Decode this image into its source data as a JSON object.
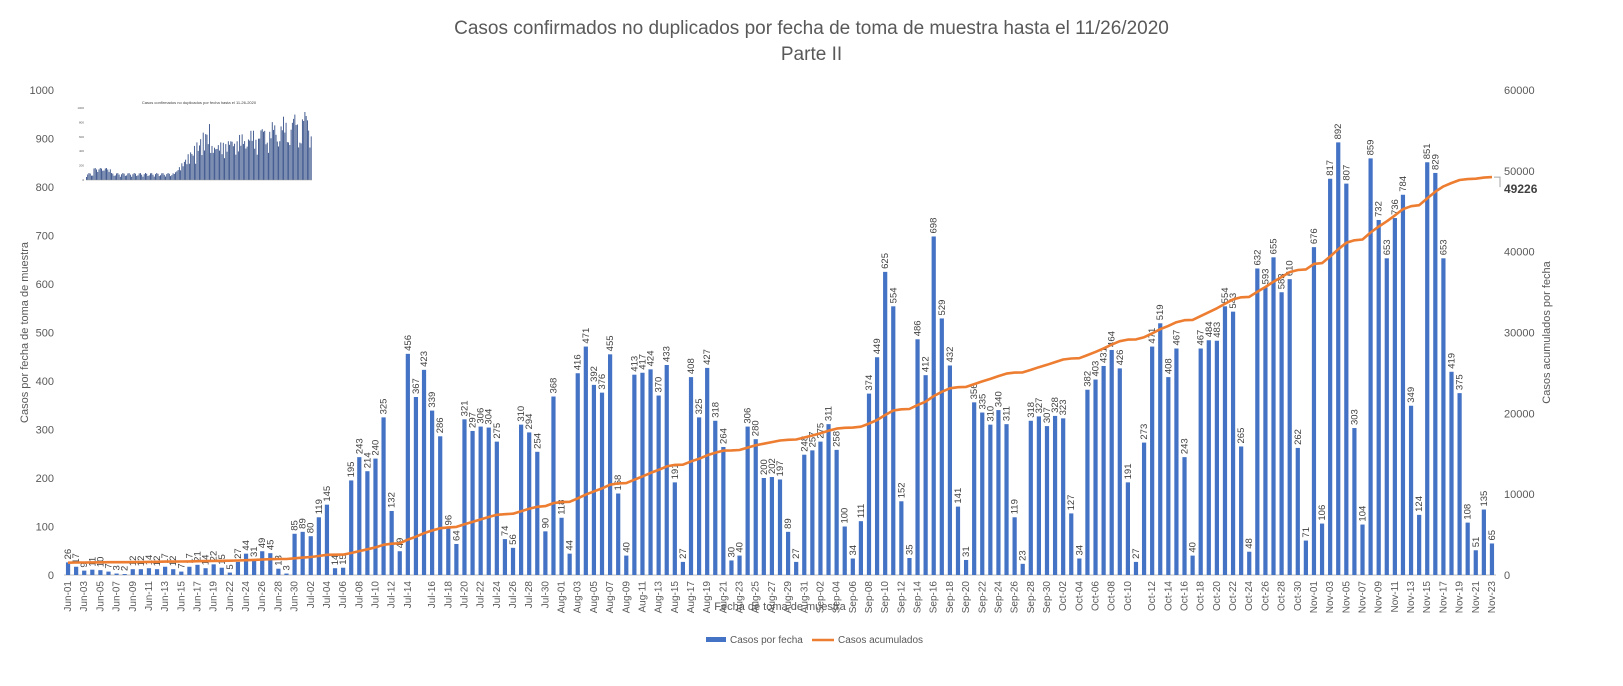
{
  "chart_data": {
    "type": "bar+line",
    "title": "Casos confirmados no duplicados por fecha de toma de muestra hasta el 11/26/2020",
    "subtitle": "Parte II",
    "xlabel": "Fecha de toma de muestra",
    "ylabel_left": "Casos por fecha de toma de muestra",
    "ylabel_right": "Casos acumulados por fecha",
    "ylim_left": [
      0,
      1000
    ],
    "ylim_right": [
      0,
      60000
    ],
    "yticks_left": [
      "0",
      "100",
      "200",
      "300",
      "400",
      "500",
      "600",
      "700",
      "800",
      "900",
      "1000"
    ],
    "yticks_right": [
      "0",
      "10000",
      "20000",
      "30000",
      "40000",
      "50000",
      "60000"
    ],
    "legend_position": "bottom",
    "start_date": "2020-06-01",
    "end_date": "2020-11-24",
    "x_tick_labels": [
      "Jun-01",
      "Jun-03",
      "Jun-05",
      "Jun-07",
      "Jun-09",
      "Jun-11",
      "Jun-13",
      "Jun-15",
      "Jun-17",
      "Jun-19",
      "Jun-22",
      "Jun-24",
      "Jun-26",
      "Jun-28",
      "Jun-30",
      "Jul-02",
      "Jul-04",
      "Jul-06",
      "Jul-08",
      "Jul-10",
      "Jul-12",
      "Jul-14",
      "Jul-16",
      "Jul-18",
      "Jul-20",
      "Jul-22",
      "Jul-24",
      "Jul-26",
      "Jul-28",
      "Jul-30",
      "Aug-01",
      "Aug-03",
      "Aug-05",
      "Aug-07",
      "Aug-09",
      "Aug-11",
      "Aug-13",
      "Aug-15",
      "Aug-17",
      "Aug-19",
      "Aug-21",
      "Aug-23",
      "Aug-25",
      "Aug-27",
      "Aug-29",
      "Aug-31",
      "Sep-02",
      "Sep-04",
      "Sep-06",
      "Sep-08",
      "Sep-10",
      "Sep-12",
      "Sep-14",
      "Sep-16",
      "Sep-18",
      "Sep-20",
      "Sep-22",
      "Sep-24",
      "Sep-26",
      "Sep-28",
      "Sep-30",
      "Oct-02",
      "Oct-04",
      "Oct-06",
      "Oct-08",
      "Oct-10",
      "Oct-12",
      "Oct-14",
      "Oct-16",
      "Oct-18",
      "Oct-20",
      "Oct-22",
      "Oct-24",
      "Oct-26",
      "Oct-28",
      "Oct-30",
      "Nov-01",
      "Nov-03",
      "Nov-05",
      "Nov-07",
      "Nov-09",
      "Nov-11",
      "Nov-13",
      "Nov-15",
      "Nov-17",
      "Nov-19",
      "Nov-21",
      "Nov-23"
    ],
    "series": [
      {
        "name": "Casos por fecha",
        "color": "#4472C4",
        "axis": "left",
        "type": "bar",
        "values": [
          26,
          17,
          9,
          11,
          10,
          7,
          3,
          2,
          12,
          12,
          14,
          12,
          17,
          12,
          7,
          17,
          21,
          14,
          22,
          15,
          5,
          27,
          44,
          31,
          49,
          45,
          13,
          3,
          85,
          89,
          80,
          119,
          145,
          14,
          15,
          195,
          243,
          214,
          240,
          325,
          132,
          49,
          456,
          367,
          423,
          339,
          286,
          96,
          64,
          321,
          297,
          306,
          304,
          275,
          74,
          56,
          310,
          294,
          254,
          90,
          368,
          118,
          44,
          416,
          471,
          392,
          376,
          455,
          168,
          40,
          413,
          417,
          424,
          370,
          433,
          191,
          27,
          408,
          325,
          427,
          318,
          264,
          30,
          40,
          306,
          280,
          200,
          202,
          197,
          89,
          27,
          248,
          257,
          275,
          311,
          258,
          100,
          34,
          111,
          374,
          449,
          625,
          554,
          152,
          35,
          486,
          412,
          698,
          529,
          432,
          141,
          31,
          356,
          335,
          310,
          340,
          311,
          119,
          23,
          318,
          327,
          307,
          328,
          323,
          127,
          34,
          382,
          403,
          431,
          464,
          426,
          191,
          27,
          273,
          471,
          519,
          408,
          467,
          243,
          40,
          467,
          484,
          483,
          554,
          543,
          265,
          48,
          632,
          593,
          655,
          583,
          610,
          262,
          71,
          676,
          106,
          817,
          892,
          807,
          303,
          104,
          859,
          732,
          653,
          736,
          784,
          349,
          124,
          851,
          829,
          653,
          419,
          375,
          108,
          51,
          135,
          65
        ]
      },
      {
        "name": "Casos acumulados",
        "color": "#ED7D31",
        "axis": "right",
        "type": "line",
        "end_label": "49226"
      }
    ]
  },
  "inset": {
    "title": "Casos confirmados no duplicados por fecha hasta el 11-26-2020",
    "yticks": [
      "1000",
      "800",
      "600",
      "400",
      "200",
      "0"
    ]
  }
}
